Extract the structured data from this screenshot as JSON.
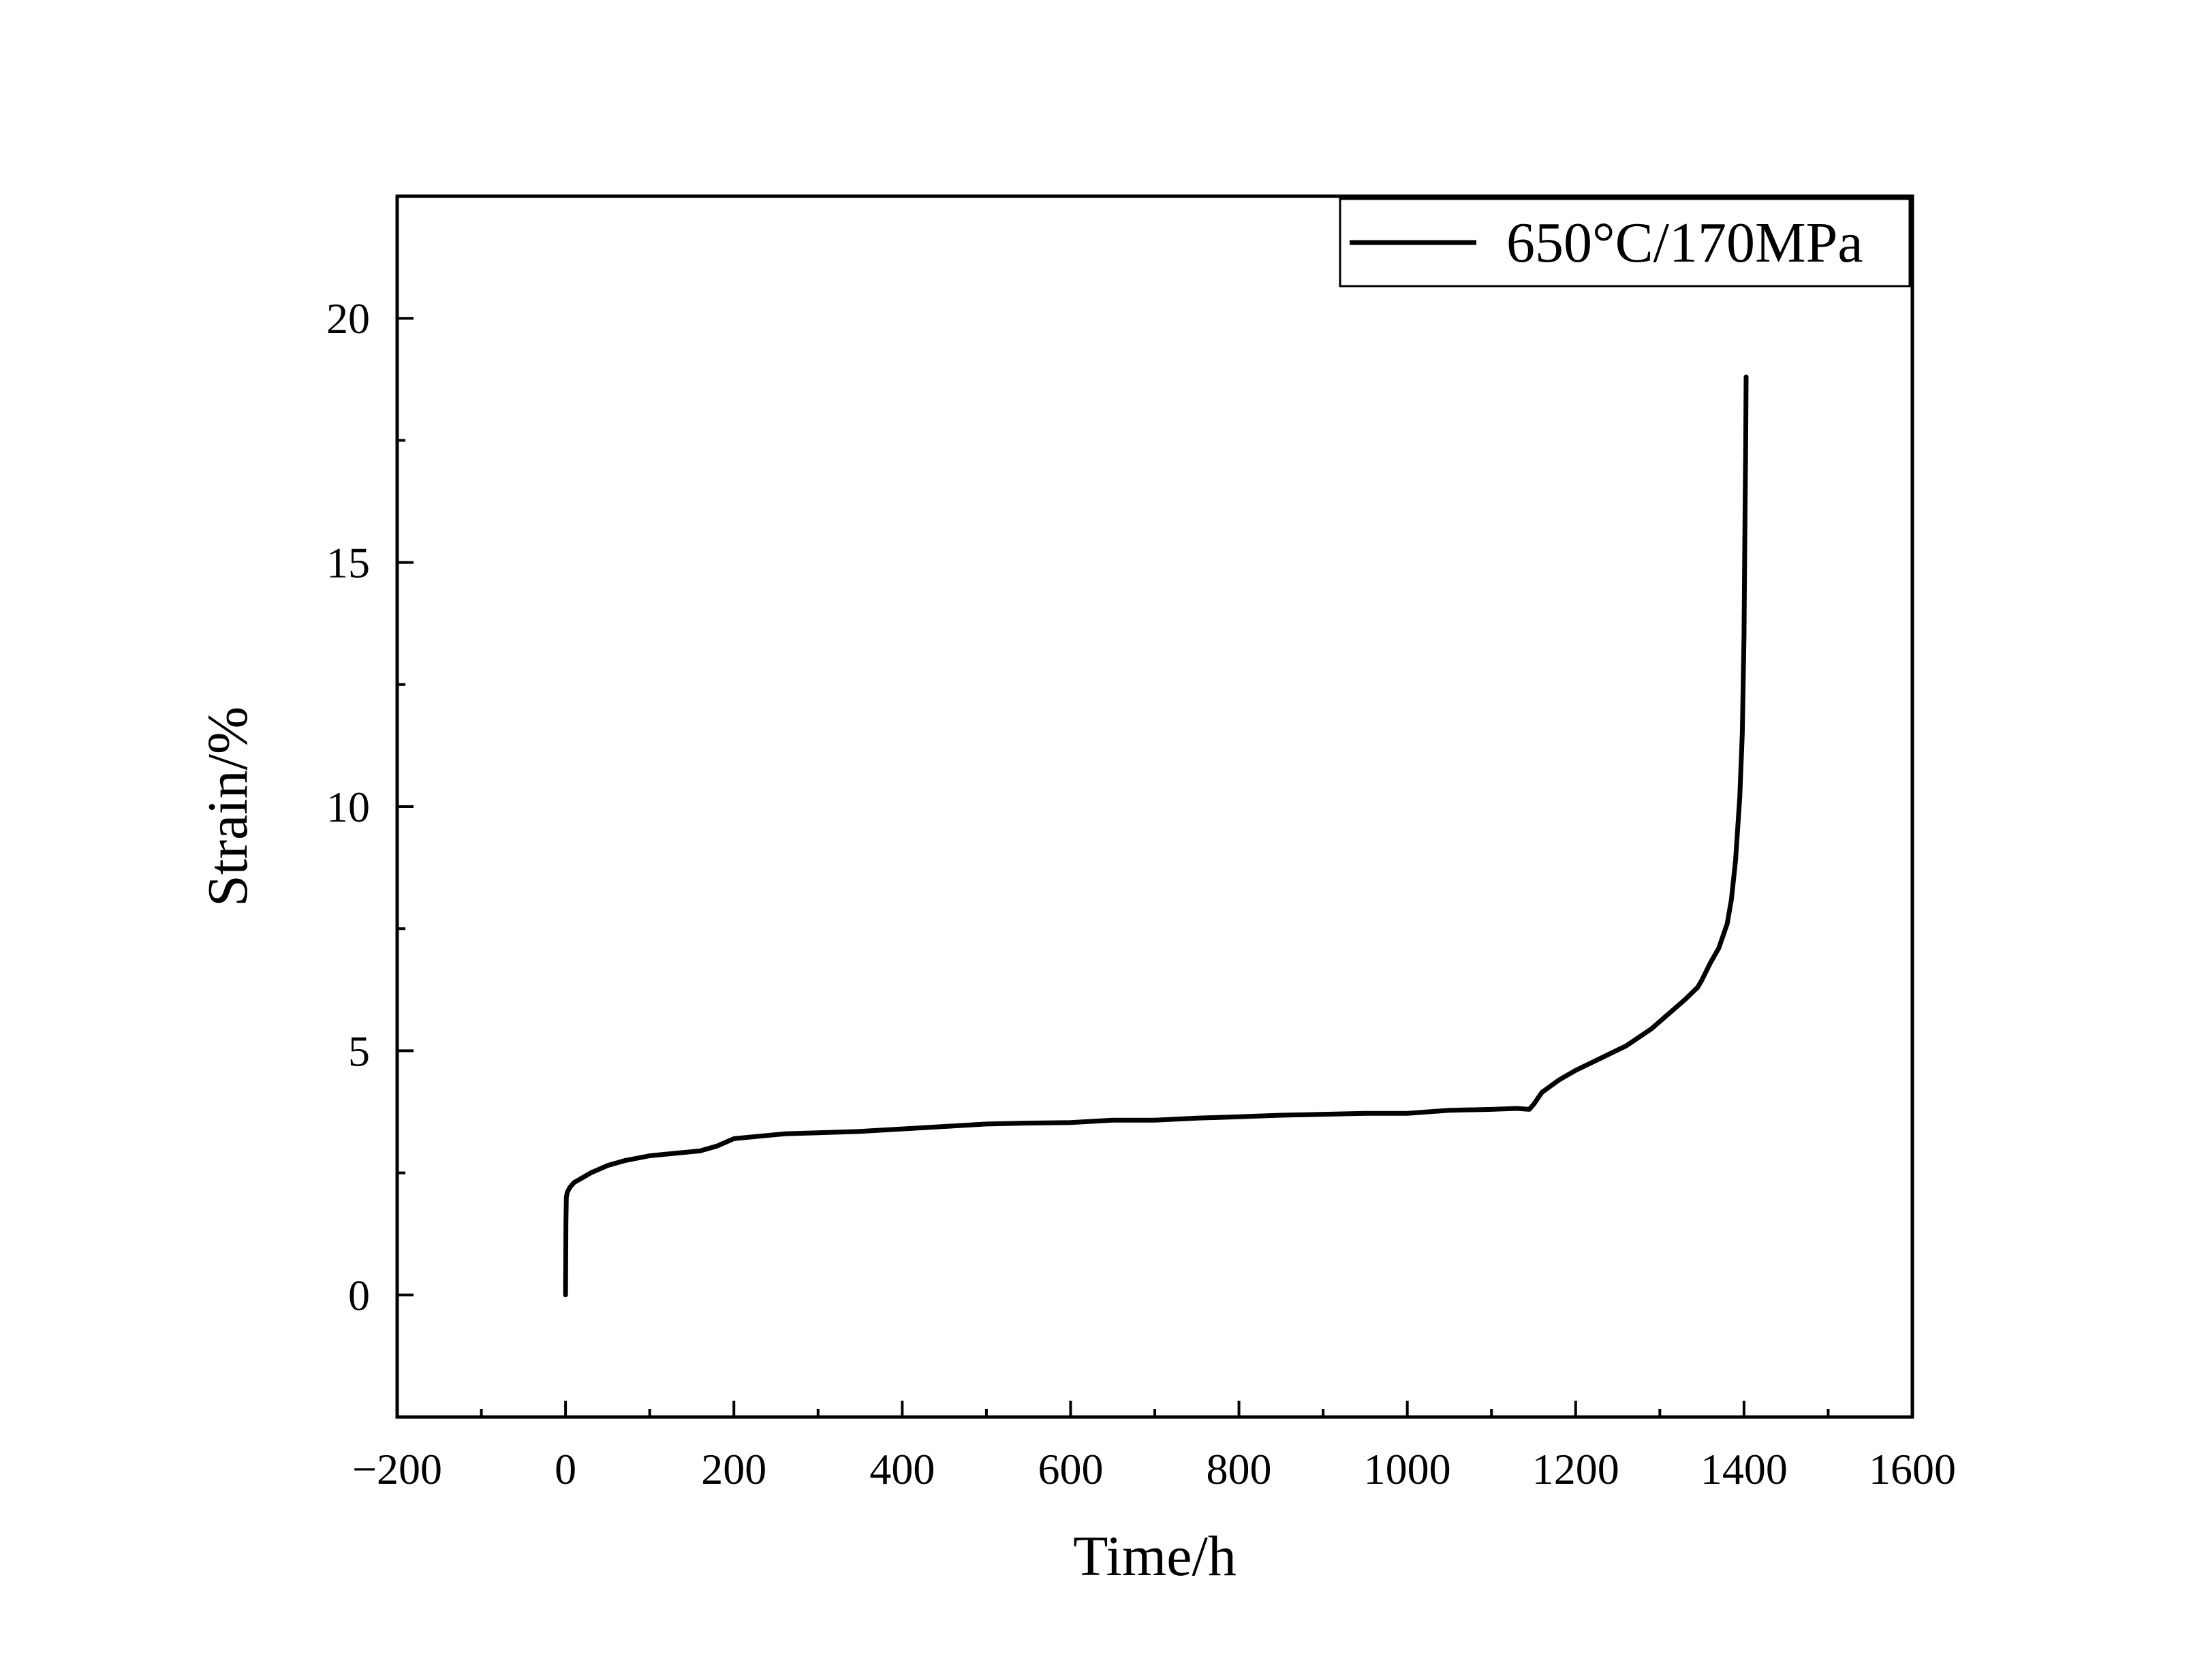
{
  "chart_data": {
    "type": "line",
    "title": "",
    "xlabel": "Time/h",
    "ylabel": "Strain/%",
    "xlim": [
      -200,
      1600
    ],
    "ylim": [
      -2.5,
      22.5
    ],
    "xticks": [
      -200,
      0,
      200,
      400,
      600,
      800,
      1000,
      1200,
      1400,
      1600
    ],
    "xtick_labels": [
      "−200",
      "0",
      "200",
      "400",
      "600",
      "800",
      "1000",
      "1200",
      "1400",
      "1600"
    ],
    "yticks": [
      0,
      5,
      10,
      15,
      20
    ],
    "ytick_labels": [
      "0",
      "5",
      "10",
      "15",
      "20"
    ],
    "grid": false,
    "legend_position": "top-right",
    "series": [
      {
        "name": "650°C/170MPa",
        "color": "#000000",
        "x": [
          0,
          0.5,
          1,
          2,
          5,
          10,
          20,
          30,
          50,
          70,
          100,
          130,
          160,
          180,
          200,
          230,
          260,
          300,
          350,
          400,
          450,
          500,
          550,
          600,
          650,
          700,
          750,
          800,
          850,
          900,
          950,
          1000,
          1050,
          1100,
          1130,
          1145,
          1150,
          1160,
          1180,
          1200,
          1230,
          1260,
          1290,
          1310,
          1330,
          1345,
          1350,
          1360,
          1370,
          1380,
          1385,
          1390,
          1395,
          1398,
          1400,
          1401,
          1402,
          1402.5
        ],
        "y": [
          0,
          1.5,
          2.0,
          2.1,
          2.2,
          2.3,
          2.4,
          2.5,
          2.65,
          2.75,
          2.85,
          2.9,
          2.95,
          3.05,
          3.2,
          3.25,
          3.3,
          3.32,
          3.35,
          3.4,
          3.45,
          3.5,
          3.52,
          3.53,
          3.58,
          3.58,
          3.62,
          3.65,
          3.68,
          3.7,
          3.72,
          3.72,
          3.78,
          3.8,
          3.82,
          3.8,
          3.9,
          4.15,
          4.4,
          4.6,
          4.85,
          5.1,
          5.45,
          5.75,
          6.05,
          6.3,
          6.45,
          6.8,
          7.1,
          7.6,
          8.1,
          8.9,
          10.2,
          11.5,
          13.5,
          15.5,
          17.5,
          18.8
        ]
      }
    ]
  }
}
